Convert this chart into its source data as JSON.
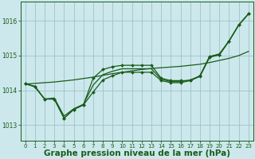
{
  "bg_color": "#cce8ec",
  "grid_color": "#9dc4c8",
  "line_color": "#1a5c1a",
  "xlabel": "Graphe pression niveau de la mer (hPa)",
  "xlabel_fontsize": 7.5,
  "ylim": [
    1012.55,
    1016.55
  ],
  "xlim": [
    -0.5,
    23.5
  ],
  "yticks": [
    1013,
    1014,
    1015,
    1016
  ],
  "xticks": [
    0,
    1,
    2,
    3,
    4,
    5,
    6,
    7,
    8,
    9,
    10,
    11,
    12,
    13,
    14,
    15,
    16,
    17,
    18,
    19,
    20,
    21,
    22,
    23
  ],
  "series": [
    {
      "y": [
        1014.2,
        1014.1,
        1013.75,
        1013.75,
        1013.2,
        1013.45,
        1013.58,
        1014.35,
        1014.6,
        1014.68,
        1014.72,
        1014.72,
        1014.72,
        1014.72,
        1014.35,
        1014.28,
        1014.28,
        1014.28,
        1014.4,
        1014.95,
        1015.02,
        1015.42,
        1015.88,
        1016.2
      ],
      "marker": true,
      "lw": 0.9
    },
    {
      "y": [
        1014.2,
        1014.1,
        1013.75,
        1013.75,
        1013.2,
        1013.45,
        1013.58,
        1013.95,
        1014.3,
        1014.42,
        1014.52,
        1014.52,
        1014.52,
        1014.52,
        1014.28,
        1014.22,
        1014.22,
        1014.28,
        1014.42,
        1014.98,
        1015.02,
        1015.42,
        1015.88,
        1016.2
      ],
      "marker": true,
      "lw": 0.9
    },
    {
      "y": [
        1014.18,
        1014.2,
        1014.22,
        1014.24,
        1014.27,
        1014.3,
        1014.34,
        1014.38,
        1014.43,
        1014.48,
        1014.52,
        1014.56,
        1014.6,
        1014.63,
        1014.65,
        1014.67,
        1014.69,
        1014.72,
        1014.75,
        1014.8,
        1014.86,
        1014.92,
        1015.0,
        1015.12
      ],
      "marker": false,
      "lw": 0.9
    },
    {
      "y": [
        1014.18,
        1014.12,
        1013.75,
        1013.78,
        1013.26,
        1013.47,
        1013.6,
        1014.15,
        1014.45,
        1014.55,
        1014.62,
        1014.62,
        1014.62,
        1014.62,
        1014.32,
        1014.25,
        1014.25,
        1014.3,
        1014.41,
        1014.97,
        1015.05,
        1015.42,
        1015.88,
        1016.2
      ],
      "marker": false,
      "lw": 0.9
    }
  ]
}
